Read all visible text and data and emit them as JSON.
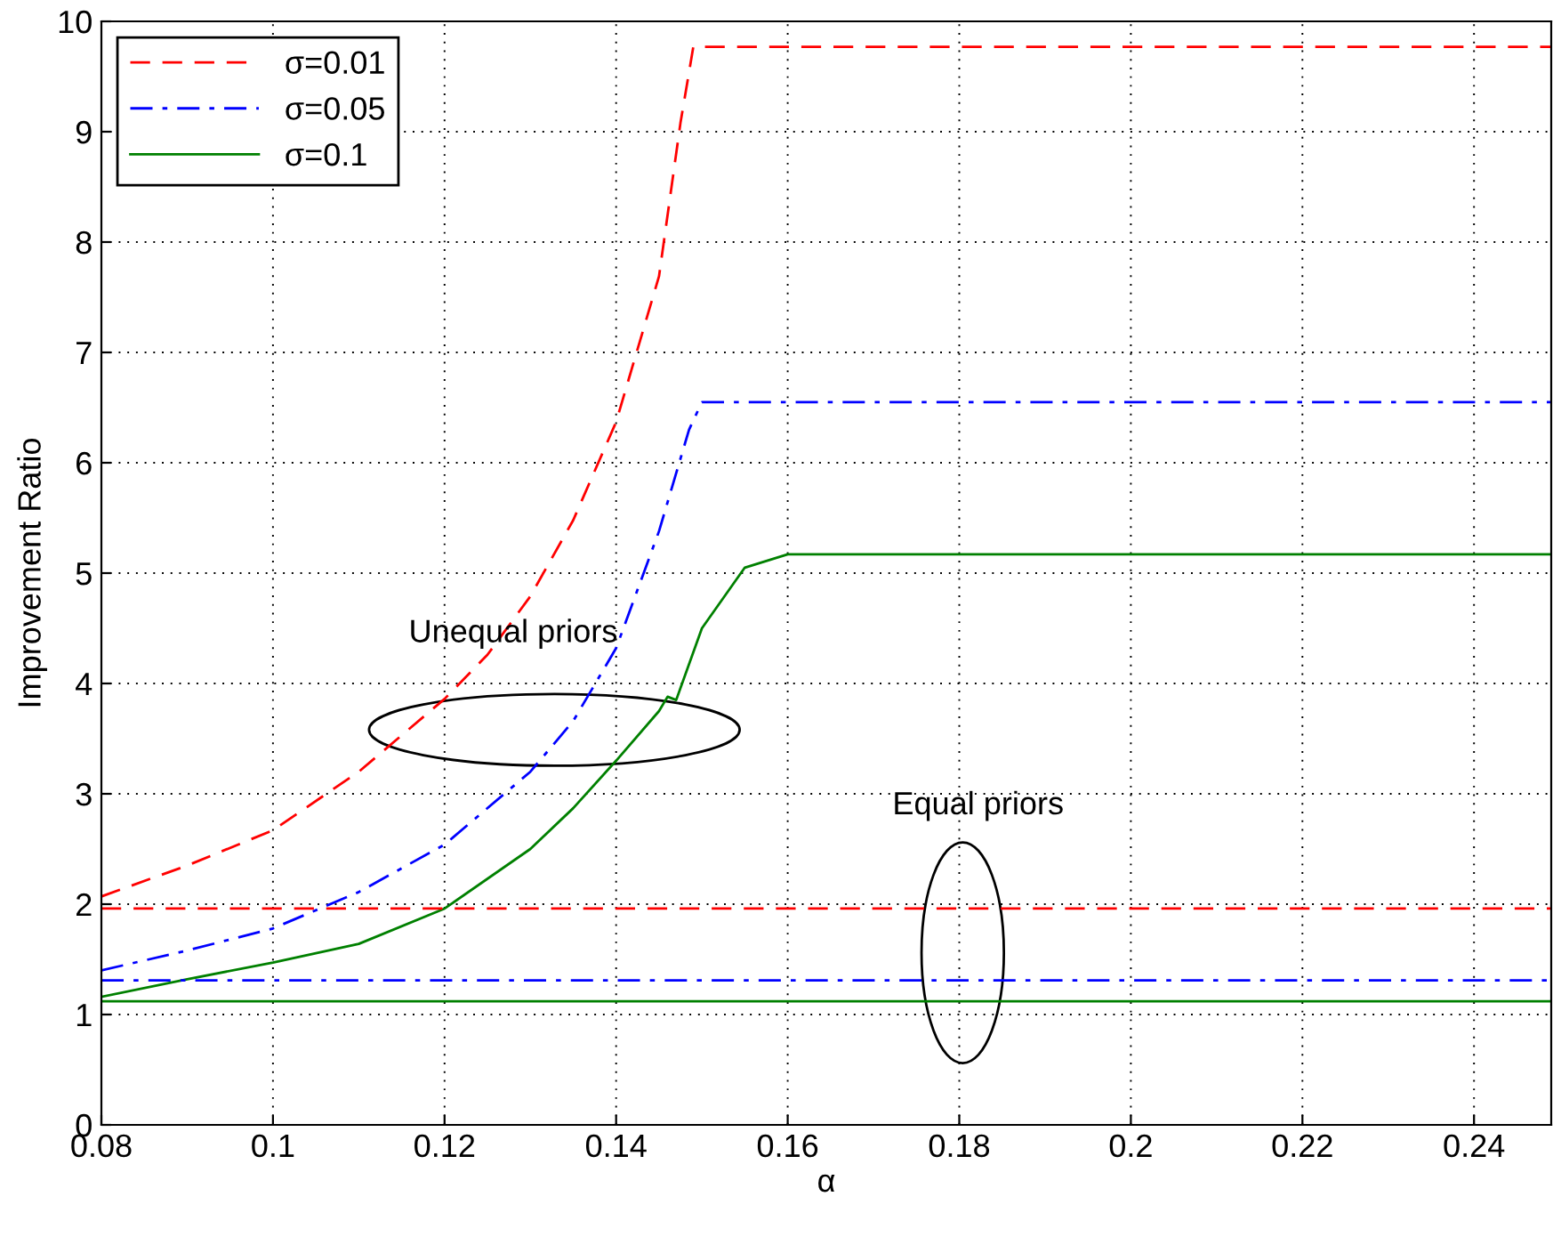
{
  "chart_data": {
    "type": "line",
    "xlabel": "α",
    "ylabel": "Improvement Ratio",
    "xlim": [
      0.08,
      0.249
    ],
    "xticks": [
      0.08,
      0.1,
      0.12,
      0.14,
      0.16,
      0.18,
      0.2,
      0.22,
      0.24
    ],
    "ylim": [
      0,
      10
    ],
    "yticks": [
      0,
      1,
      2,
      3,
      4,
      5,
      6,
      7,
      8,
      9,
      10
    ],
    "grid": true,
    "legend": "top left",
    "annotations": [
      "Unequal priors",
      "Equal priors"
    ],
    "series": [
      {
        "name": "σ=0.01",
        "color": "#ff0000",
        "line_style": "dashed",
        "x": [
          0.08,
          0.09,
          0.1,
          0.11,
          0.12,
          0.125,
          0.13,
          0.135,
          0.14,
          0.145,
          0.1475,
          0.149,
          0.15,
          0.249
        ],
        "values": [
          2.07,
          2.35,
          2.67,
          3.2,
          3.86,
          4.26,
          4.79,
          5.48,
          6.37,
          7.69,
          9.08,
          9.77,
          9.77,
          9.77
        ]
      },
      {
        "name": "σ=0.05",
        "color": "#0000ff",
        "line_style": "dashdot",
        "x": [
          0.08,
          0.09,
          0.1,
          0.11,
          0.12,
          0.13,
          0.135,
          0.14,
          0.145,
          0.1485,
          0.15,
          0.249
        ],
        "values": [
          1.4,
          1.58,
          1.78,
          2.11,
          2.54,
          3.2,
          3.66,
          4.32,
          5.38,
          6.3,
          6.55,
          6.55
        ]
      },
      {
        "name": "σ=0.1",
        "color": "#008000",
        "line_style": "solid",
        "x": [
          0.08,
          0.09,
          0.1,
          0.11,
          0.12,
          0.13,
          0.135,
          0.14,
          0.145,
          0.146,
          0.147,
          0.15,
          0.155,
          0.16,
          0.249
        ],
        "values": [
          1.16,
          1.32,
          1.47,
          1.64,
          1.96,
          2.5,
          2.87,
          3.3,
          3.75,
          3.88,
          3.85,
          4.5,
          5.05,
          5.17,
          5.17
        ]
      },
      {
        "color": "#ff0000",
        "line_style": "dashed",
        "x": [
          0.08,
          0.249
        ],
        "values": [
          1.96,
          1.96
        ]
      },
      {
        "color": "#0000ff",
        "line_style": "dashdot",
        "x": [
          0.08,
          0.249
        ],
        "values": [
          1.31,
          1.31
        ]
      },
      {
        "color": "#008000",
        "line_style": "solid",
        "x": [
          0.08,
          0.249
        ],
        "values": [
          1.12,
          1.12
        ]
      }
    ]
  }
}
